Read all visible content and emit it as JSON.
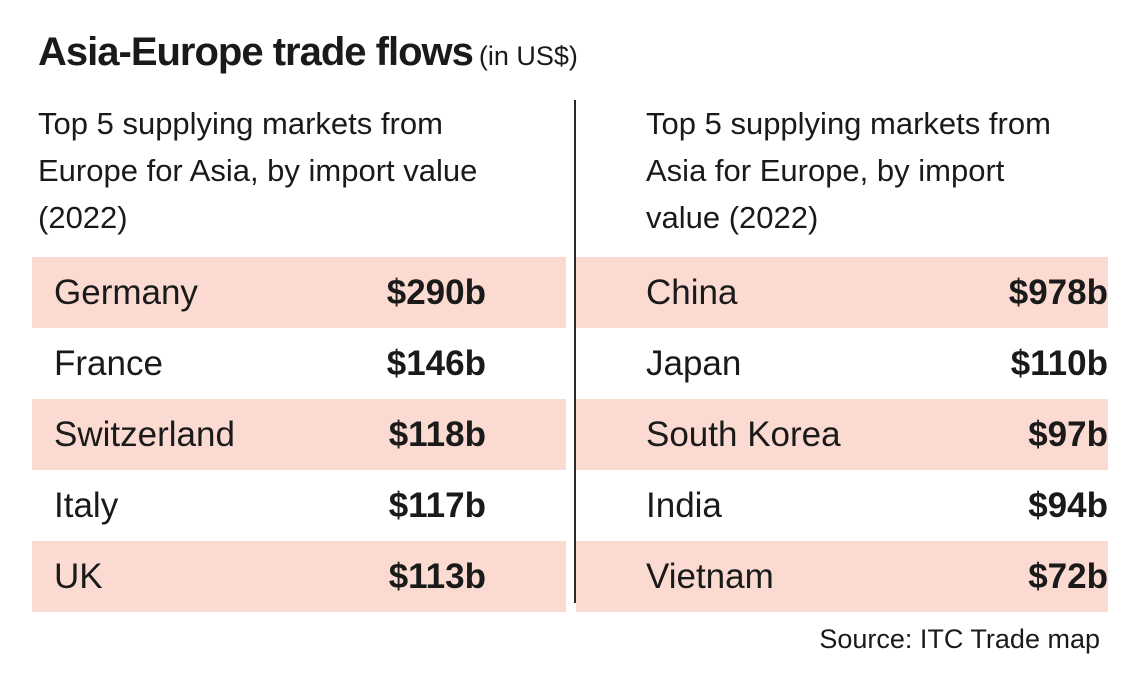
{
  "chart_data": {
    "type": "table",
    "title": "Asia-Europe trade flows",
    "title_unit": "(in US$)",
    "tables": [
      {
        "heading": "Top 5 supplying markets from Europe for Asia, by import value (2022)",
        "rows": [
          {
            "country": "Germany",
            "value": 290,
            "label": "$290b"
          },
          {
            "country": "France",
            "value": 146,
            "label": "$146b"
          },
          {
            "country": "Switzerland",
            "value": 118,
            "label": "$118b"
          },
          {
            "country": "Italy",
            "value": 117,
            "label": "$117b"
          },
          {
            "country": "UK",
            "value": 113,
            "label": "$113b"
          }
        ]
      },
      {
        "heading": "Top 5 supplying markets from Asia for Europe, by import value (2022)",
        "rows": [
          {
            "country": "China",
            "value": 978,
            "label": "$978b"
          },
          {
            "country": "Japan",
            "value": 110,
            "label": "$110b"
          },
          {
            "country": "South Korea",
            "value": 97,
            "label": "$97b"
          },
          {
            "country": "India",
            "value": 94,
            "label": "$94b"
          },
          {
            "country": "Vietnam",
            "value": 72,
            "label": "$72b"
          }
        ]
      }
    ],
    "source": "Source: ITC Trade map"
  },
  "colors": {
    "shaded_row": "#fbdbd1",
    "text": "#1a1a1a",
    "divider": "#2a2a2a"
  }
}
